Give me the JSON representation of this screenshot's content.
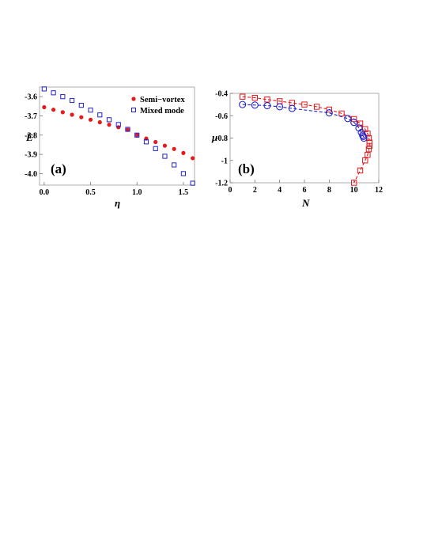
{
  "chart_data": [
    {
      "type": "scatter",
      "panel_label": "(a)",
      "xlabel": "η",
      "ylabel": "E",
      "xlim": [
        -0.05,
        1.62
      ],
      "ylim": [
        -4.06,
        -3.55
      ],
      "xticks": [
        0.0,
        0.5,
        1.0,
        1.5
      ],
      "xtick_labels": [
        "0.0",
        "0.5",
        "1.0",
        "1.5"
      ],
      "yticks": [
        -3.6,
        -3.7,
        -3.8,
        -3.9,
        -4.0
      ],
      "ytick_labels": [
        "-3.6",
        "-3.7",
        "-3.8",
        "-3.9",
        "-4.0"
      ],
      "legend_position": "top-right",
      "series": [
        {
          "name": "Semi−vortex",
          "marker": "filled-circle",
          "color": "#e41a1c",
          "x": [
            0.0,
            0.1,
            0.2,
            0.3,
            0.4,
            0.5,
            0.6,
            0.7,
            0.8,
            0.9,
            1.0,
            1.1,
            1.2,
            1.3,
            1.4,
            1.5,
            1.6
          ],
          "y": [
            -3.655,
            -3.668,
            -3.681,
            -3.694,
            -3.707,
            -3.72,
            -3.733,
            -3.746,
            -3.759,
            -3.772,
            -3.8,
            -3.818,
            -3.836,
            -3.855,
            -3.872,
            -3.893,
            -3.92
          ]
        },
        {
          "name": "Mixed mode",
          "marker": "open-square",
          "color": "#2222cc",
          "x": [
            0.0,
            0.1,
            0.2,
            0.3,
            0.4,
            0.5,
            0.6,
            0.7,
            0.8,
            0.9,
            1.0,
            1.1,
            1.2,
            1.3,
            1.4,
            1.5,
            1.6
          ],
          "y": [
            -3.56,
            -3.58,
            -3.6,
            -3.62,
            -3.645,
            -3.67,
            -3.695,
            -3.72,
            -3.745,
            -3.77,
            -3.8,
            -3.835,
            -3.87,
            -3.91,
            -3.955,
            -4.0,
            -4.05
          ]
        }
      ]
    },
    {
      "type": "line",
      "panel_label": "(b)",
      "xlabel": "N",
      "ylabel": "μ",
      "xlim": [
        0,
        12
      ],
      "ylim": [
        -1.2,
        -0.4
      ],
      "xticks": [
        0,
        2,
        4,
        6,
        8,
        10,
        12
      ],
      "xtick_labels": [
        "0",
        "2",
        "4",
        "6",
        "8",
        "10",
        "12"
      ],
      "yticks": [
        -0.4,
        -0.6,
        -0.8,
        -1.0,
        -1.2
      ],
      "ytick_labels": [
        "-0.4",
        "-0.6",
        "-0.8",
        "-1",
        "-1.2"
      ],
      "series": [
        {
          "marker": "open-square",
          "line": "dashed",
          "color": "#e41a1c",
          "x": [
            1.0,
            2.0,
            3.0,
            4.0,
            5.0,
            6.0,
            7.0,
            8.0,
            9.0,
            10.0,
            10.5,
            10.9,
            11.1,
            11.2,
            11.25,
            11.25,
            11.2,
            11.1,
            10.9,
            10.5,
            10.0
          ],
          "y": [
            -0.43,
            -0.44,
            -0.455,
            -0.47,
            -0.485,
            -0.5,
            -0.52,
            -0.545,
            -0.58,
            -0.63,
            -0.67,
            -0.72,
            -0.76,
            -0.8,
            -0.84,
            -0.87,
            -0.9,
            -0.95,
            -1.0,
            -1.09,
            -1.2
          ]
        },
        {
          "marker": "open-circle",
          "line": "dashed",
          "color": "#2222cc",
          "x": [
            1.0,
            2.0,
            3.0,
            4.0,
            5.0,
            8.0,
            9.5,
            10.0,
            10.4,
            10.6,
            10.7,
            10.75,
            10.8
          ],
          "y": [
            -0.5,
            -0.505,
            -0.51,
            -0.52,
            -0.535,
            -0.575,
            -0.625,
            -0.66,
            -0.71,
            -0.75,
            -0.775,
            -0.785,
            -0.8
          ]
        }
      ]
    }
  ]
}
